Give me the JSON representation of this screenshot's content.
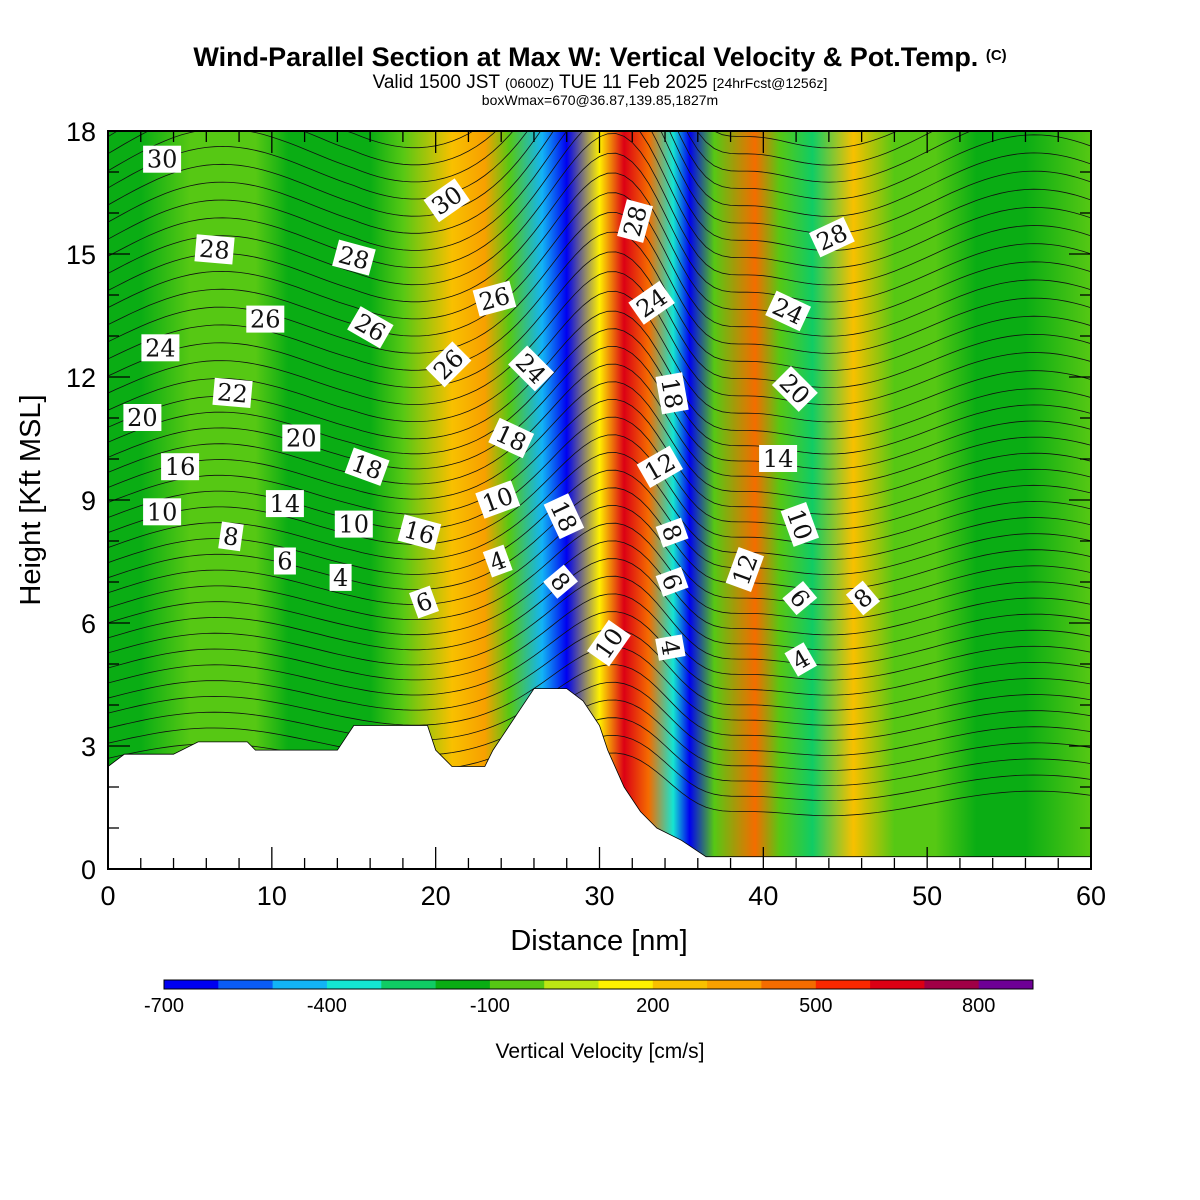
{
  "header": {
    "title": "Wind-Parallel Section at Max W: Vertical Velocity & Pot.Temp.",
    "title_mark": "(C)",
    "valid_prefix": "Valid 1500 JST",
    "valid_utc": "(0600Z)",
    "valid_date": "TUE 11 Feb 2025",
    "forecast": "[24hrFcst@1256z]",
    "box_info": "boxWmax=670@36.87,139.85,1827m"
  },
  "chart_data": {
    "type": "contour",
    "xlabel": "Distance [nm]",
    "ylabel": "Height [Kft MSL]",
    "xlim": [
      0,
      60
    ],
    "ylim": [
      0,
      18
    ],
    "xticks": [
      0,
      10,
      20,
      30,
      40,
      50,
      60
    ],
    "yticks": [
      0,
      3,
      6,
      9,
      12,
      15,
      18
    ],
    "colorbar": {
      "label": "Vertical Velocity [cm/s]",
      "ticks": [
        -700,
        -400,
        -100,
        200,
        500,
        800
      ],
      "levels": [
        -700,
        -600,
        -500,
        -400,
        -300,
        -200,
        -100,
        0,
        100,
        200,
        300,
        400,
        500,
        600,
        700,
        800,
        900
      ],
      "colors": [
        "#0000f0",
        "#0a5cf5",
        "#12b4f5",
        "#14e6d2",
        "#10cc64",
        "#0aad14",
        "#56c814",
        "#bce614",
        "#fef000",
        "#f8c000",
        "#f8a000",
        "#f46c00",
        "#fa2800",
        "#dc0014",
        "#a00046",
        "#6e0096"
      ]
    },
    "vertical_velocity_bands": [
      {
        "x": 0,
        "w": -150
      },
      {
        "x": 2,
        "w": -120
      },
      {
        "x": 5,
        "w": -100
      },
      {
        "x": 9,
        "w": -80
      },
      {
        "x": 11,
        "w": -150
      },
      {
        "x": 13,
        "w": -200
      },
      {
        "x": 16,
        "w": -150
      },
      {
        "x": 18,
        "w": -100
      },
      {
        "x": 21,
        "w": 280
      },
      {
        "x": 23,
        "w": 350
      },
      {
        "x": 24.5,
        "w": -100
      },
      {
        "x": 26.5,
        "w": -450
      },
      {
        "x": 28,
        "w": -650
      },
      {
        "x": 30,
        "w": 100
      },
      {
        "x": 31.5,
        "w": 680
      },
      {
        "x": 33,
        "w": 450
      },
      {
        "x": 34.5,
        "w": -320
      },
      {
        "x": 35.5,
        "w": -680
      },
      {
        "x": 37,
        "w": -100
      },
      {
        "x": 39.5,
        "w": 420
      },
      {
        "x": 41,
        "w": -100
      },
      {
        "x": 43,
        "w": -280
      },
      {
        "x": 45.5,
        "w": 220
      },
      {
        "x": 48,
        "w": -50
      },
      {
        "x": 50.5,
        "w": -100
      },
      {
        "x": 53,
        "w": -120
      },
      {
        "x": 56,
        "w": -180
      },
      {
        "x": 60,
        "w": -100
      }
    ],
    "terrain": [
      {
        "x": 0,
        "h": 2.5
      },
      {
        "x": 1,
        "h": 2.8
      },
      {
        "x": 4,
        "h": 2.8
      },
      {
        "x": 5.5,
        "h": 3.1
      },
      {
        "x": 8.5,
        "h": 3.1
      },
      {
        "x": 9,
        "h": 2.9
      },
      {
        "x": 14,
        "h": 2.9
      },
      {
        "x": 14.5,
        "h": 3.2
      },
      {
        "x": 15,
        "h": 3.5
      },
      {
        "x": 19.5,
        "h": 3.5
      },
      {
        "x": 20,
        "h": 2.9
      },
      {
        "x": 21,
        "h": 2.5
      },
      {
        "x": 23,
        "h": 2.5
      },
      {
        "x": 23.5,
        "h": 2.9
      },
      {
        "x": 24,
        "h": 3.2
      },
      {
        "x": 25,
        "h": 3.8
      },
      {
        "x": 26,
        "h": 4.4
      },
      {
        "x": 28,
        "h": 4.4
      },
      {
        "x": 29,
        "h": 4.1
      },
      {
        "x": 30,
        "h": 3.5
      },
      {
        "x": 30.5,
        "h": 2.9
      },
      {
        "x": 31.5,
        "h": 2.0
      },
      {
        "x": 32.5,
        "h": 1.4
      },
      {
        "x": 33.5,
        "h": 1.0
      },
      {
        "x": 35,
        "h": 0.7
      },
      {
        "x": 36.5,
        "h": 0.3
      },
      {
        "x": 60,
        "h": 0.3
      }
    ],
    "theta_label_values": [
      30,
      28,
      26,
      24,
      22,
      20,
      18,
      16,
      14,
      12,
      10,
      8,
      6,
      4
    ],
    "theta_labels": [
      {
        "text": "30",
        "x": 3.3,
        "y": 17.3,
        "rot": 0
      },
      {
        "text": "28",
        "x": 6.5,
        "y": 15.1,
        "rot": 5
      },
      {
        "text": "26",
        "x": 9.6,
        "y": 13.4,
        "rot": 0
      },
      {
        "text": "24",
        "x": 3.2,
        "y": 12.7,
        "rot": 0
      },
      {
        "text": "22",
        "x": 7.6,
        "y": 11.6,
        "rot": 5
      },
      {
        "text": "20",
        "x": 2.1,
        "y": 11.0,
        "rot": 0
      },
      {
        "text": "16",
        "x": 4.4,
        "y": 9.8,
        "rot": 0
      },
      {
        "text": "10",
        "x": 3.3,
        "y": 8.7,
        "rot": 0
      },
      {
        "text": "8",
        "x": 7.5,
        "y": 8.1,
        "rot": 8
      },
      {
        "text": "20",
        "x": 11.8,
        "y": 10.5,
        "rot": 0
      },
      {
        "text": "14",
        "x": 10.8,
        "y": 8.9,
        "rot": 0
      },
      {
        "text": "6",
        "x": 10.8,
        "y": 7.5,
        "rot": 0
      },
      {
        "text": "4",
        "x": 14.2,
        "y": 7.1,
        "rot": 0
      },
      {
        "text": "28",
        "x": 15.0,
        "y": 14.9,
        "rot": 15
      },
      {
        "text": "26",
        "x": 16.0,
        "y": 13.2,
        "rot": 30
      },
      {
        "text": "18",
        "x": 15.8,
        "y": 9.8,
        "rot": 20
      },
      {
        "text": "10",
        "x": 15.0,
        "y": 8.4,
        "rot": 0
      },
      {
        "text": "16",
        "x": 19.0,
        "y": 8.2,
        "rot": 15
      },
      {
        "text": "6",
        "x": 19.3,
        "y": 6.5,
        "rot": -20
      },
      {
        "text": "30",
        "x": 20.7,
        "y": 16.3,
        "rot": -35
      },
      {
        "text": "26",
        "x": 23.6,
        "y": 13.9,
        "rot": -15
      },
      {
        "text": "26",
        "x": 20.8,
        "y": 12.3,
        "rot": -45
      },
      {
        "text": "18",
        "x": 24.6,
        "y": 10.5,
        "rot": 25
      },
      {
        "text": "10",
        "x": 23.8,
        "y": 9.0,
        "rot": -20
      },
      {
        "text": "4",
        "x": 23.8,
        "y": 7.5,
        "rot": -20
      },
      {
        "text": "24",
        "x": 25.8,
        "y": 12.2,
        "rot": 45
      },
      {
        "text": "18",
        "x": 27.8,
        "y": 8.6,
        "rot": 65
      },
      {
        "text": "8",
        "x": 27.6,
        "y": 7.0,
        "rot": 50
      },
      {
        "text": "10",
        "x": 30.6,
        "y": 5.5,
        "rot": -55
      },
      {
        "text": "28",
        "x": 32.2,
        "y": 15.8,
        "rot": -75
      },
      {
        "text": "24",
        "x": 33.2,
        "y": 13.8,
        "rot": -35
      },
      {
        "text": "18",
        "x": 34.4,
        "y": 11.6,
        "rot": 80
      },
      {
        "text": "12",
        "x": 33.7,
        "y": 9.8,
        "rot": -30
      },
      {
        "text": "8",
        "x": 34.4,
        "y": 8.2,
        "rot": 70
      },
      {
        "text": "6",
        "x": 34.4,
        "y": 7.0,
        "rot": 70
      },
      {
        "text": "4",
        "x": 34.3,
        "y": 5.4,
        "rot": 80
      },
      {
        "text": "28",
        "x": 44.2,
        "y": 15.4,
        "rot": -25
      },
      {
        "text": "24",
        "x": 41.5,
        "y": 13.6,
        "rot": 25
      },
      {
        "text": "20",
        "x": 41.9,
        "y": 11.7,
        "rot": 45
      },
      {
        "text": "14",
        "x": 40.9,
        "y": 10.0,
        "rot": 0
      },
      {
        "text": "10",
        "x": 42.2,
        "y": 8.4,
        "rot": 70
      },
      {
        "text": "12",
        "x": 38.9,
        "y": 7.3,
        "rot": -70
      },
      {
        "text": "6",
        "x": 42.2,
        "y": 6.6,
        "rot": 50
      },
      {
        "text": "8",
        "x": 46.1,
        "y": 6.6,
        "rot": -40
      },
      {
        "text": "4",
        "x": 42.3,
        "y": 5.1,
        "rot": -30
      }
    ]
  }
}
